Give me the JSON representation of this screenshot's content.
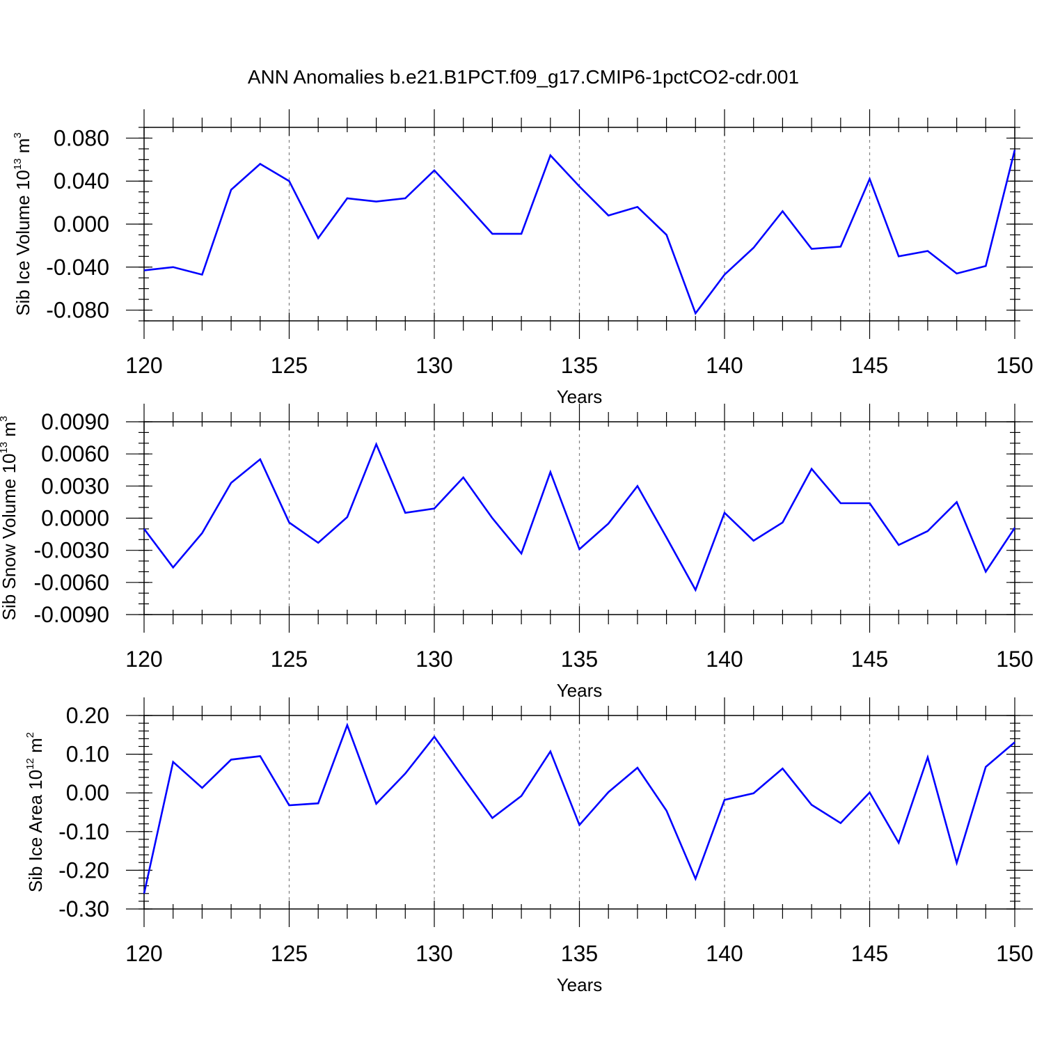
{
  "title": "ANN Anomalies b.e21.B1PCT.f09_g17.CMIP6-1pctCO2-cdr.001",
  "line_color": "#0000ff",
  "chart_data": [
    {
      "type": "line",
      "xlabel": "Years",
      "ylabel": {
        "text": "Sib Ice Volume 10",
        "exp": "13",
        "unit": " m",
        "unit_exp": "3"
      },
      "xlim": [
        120,
        150
      ],
      "ylim": [
        -0.09,
        0.09
      ],
      "grid": "vertical dashed",
      "x_ticks": [
        120,
        125,
        130,
        135,
        140,
        145,
        150
      ],
      "y_ticks": [
        -0.08,
        -0.04,
        0.0,
        0.04,
        0.08
      ],
      "y_tick_labels": [
        "-0.080",
        "-0.040",
        "0.000",
        "0.040",
        "0.080"
      ],
      "y_minor": 0.01,
      "x": [
        120,
        121,
        122,
        123,
        124,
        125,
        126,
        127,
        128,
        129,
        130,
        131,
        132,
        133,
        134,
        135,
        136,
        137,
        138,
        139,
        140,
        141,
        142,
        143,
        144,
        145,
        146,
        147,
        148,
        149,
        150
      ],
      "values": [
        -0.043,
        -0.04,
        -0.047,
        0.032,
        0.056,
        0.04,
        -0.013,
        0.024,
        0.021,
        0.024,
        0.05,
        0.021,
        -0.009,
        -0.009,
        0.064,
        0.035,
        0.008,
        0.016,
        -0.01,
        -0.083,
        -0.047,
        -0.022,
        0.012,
        -0.023,
        -0.021,
        0.042,
        -0.03,
        -0.025,
        -0.046,
        -0.039,
        0.069
      ]
    },
    {
      "type": "line",
      "xlabel": "Years",
      "ylabel": {
        "text": "Sib Snow Volume 10",
        "exp": "13",
        "unit": " m",
        "unit_exp": "3"
      },
      "xlim": [
        120,
        150
      ],
      "ylim": [
        -0.009,
        0.009
      ],
      "grid": "vertical dashed",
      "x_ticks": [
        120,
        125,
        130,
        135,
        140,
        145,
        150
      ],
      "y_ticks": [
        -0.009,
        -0.006,
        -0.003,
        0.0,
        0.003,
        0.006,
        0.009
      ],
      "y_tick_labels": [
        "-0.0090",
        "-0.0060",
        "-0.0030",
        "0.0000",
        "0.0030",
        "0.0060",
        "0.0090"
      ],
      "y_minor": 0.001,
      "x": [
        120,
        121,
        122,
        123,
        124,
        125,
        126,
        127,
        128,
        129,
        130,
        131,
        132,
        133,
        134,
        135,
        136,
        137,
        138,
        139,
        140,
        141,
        142,
        143,
        144,
        145,
        146,
        147,
        148,
        149,
        150
      ],
      "values": [
        -0.001,
        -0.0046,
        -0.0014,
        0.0033,
        0.0055,
        -0.0004,
        -0.0023,
        0.0001,
        0.0069,
        0.0005,
        0.0009,
        0.0038,
        0.0,
        -0.0033,
        0.0043,
        -0.0029,
        -0.0005,
        0.003,
        -0.0018,
        -0.0067,
        0.0005,
        -0.0021,
        -0.0004,
        0.0046,
        0.0014,
        0.0014,
        -0.0025,
        -0.0012,
        0.0015,
        -0.005,
        -0.0009
      ]
    },
    {
      "type": "line",
      "xlabel": "Years",
      "ylabel": {
        "text": "Sib Ice Area 10",
        "exp": "12",
        "unit": " m",
        "unit_exp": "2"
      },
      "xlim": [
        120,
        150
      ],
      "ylim": [
        -0.3,
        0.2
      ],
      "grid": "vertical dashed",
      "x_ticks": [
        120,
        125,
        130,
        135,
        140,
        145,
        150
      ],
      "y_ticks": [
        -0.3,
        -0.2,
        -0.1,
        0.0,
        0.1,
        0.2
      ],
      "y_tick_labels": [
        "-0.30",
        "-0.20",
        "-0.10",
        "0.00",
        "0.10",
        "0.20"
      ],
      "y_minor": 0.02,
      "x": [
        120,
        121,
        122,
        123,
        124,
        125,
        126,
        127,
        128,
        129,
        130,
        131,
        132,
        133,
        134,
        135,
        136,
        137,
        138,
        139,
        140,
        141,
        142,
        143,
        144,
        145,
        146,
        147,
        148,
        149,
        150
      ],
      "values": [
        -0.26,
        0.08,
        0.013,
        0.086,
        0.095,
        -0.032,
        -0.027,
        0.175,
        -0.028,
        0.05,
        0.145,
        0.039,
        -0.065,
        -0.008,
        0.107,
        -0.083,
        0.002,
        0.065,
        -0.046,
        -0.222,
        -0.018,
        -0.001,
        0.063,
        -0.031,
        -0.078,
        0.001,
        -0.129,
        0.092,
        -0.181,
        0.067,
        0.131
      ]
    }
  ]
}
